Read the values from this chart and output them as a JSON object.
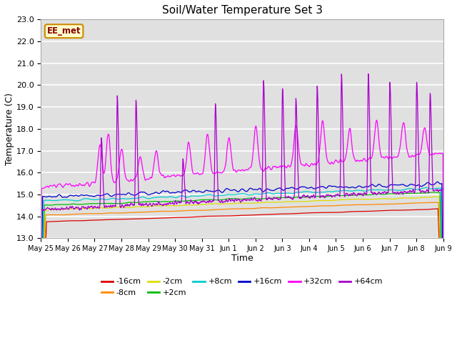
{
  "title": "Soil/Water Temperature Set 3",
  "xlabel": "Time",
  "ylabel": "Temperature (C)",
  "ylim": [
    13.0,
    23.0
  ],
  "yticks": [
    13.0,
    14.0,
    15.0,
    16.0,
    17.0,
    18.0,
    19.0,
    20.0,
    21.0,
    22.0,
    23.0
  ],
  "bg_color": "#e0e0e0",
  "fig_color": "#ffffff",
  "annotation_text": "EE_met",
  "annotation_bg": "#ffffcc",
  "annotation_border": "#cc8800",
  "series_colors": {
    "-16cm": "#dd0000",
    "-8cm": "#ff8800",
    "-2cm": "#dddd00",
    "+2cm": "#00bb00",
    "+8cm": "#00cccc",
    "+16cm": "#0000cc",
    "+32cm": "#ff00ff",
    "+64cm": "#aa00cc"
  },
  "xtick_labels": [
    "May 25",
    "May 26",
    "May 27",
    "May 28",
    "May 29",
    "May 30",
    "May 31",
    "Jun 1",
    "Jun 2",
    "Jun 3",
    "Jun 4",
    "Jun 5",
    "Jun 6",
    "Jun 7",
    "Jun 8",
    "Jun 9"
  ],
  "n_points": 1440,
  "n_days": 15
}
